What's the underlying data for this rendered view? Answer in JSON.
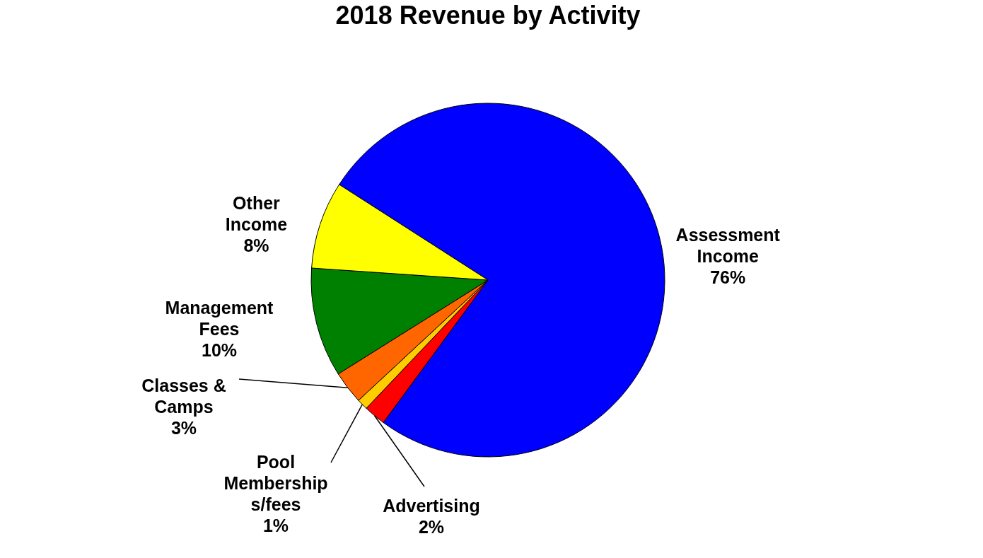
{
  "chart_data": {
    "type": "pie",
    "title": "2018 Revenue by Activity",
    "categories": [
      "Assessment\nIncome",
      "Advertising",
      "Pool\nMembership\ns/fees",
      "Classes &\nCamps",
      "Management\nFees",
      "Other\nIncome"
    ],
    "values": [
      76,
      2,
      1,
      3,
      10,
      8
    ],
    "colors": [
      "#0000ff",
      "#ff0000",
      "#ffcc00",
      "#ff6600",
      "#008000",
      "#ffff00"
    ],
    "value_labels": [
      "76%",
      "2%",
      "1%",
      "3%",
      "10%",
      "8%"
    ],
    "legend": false
  }
}
